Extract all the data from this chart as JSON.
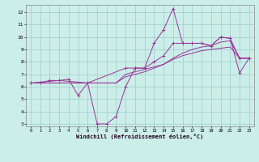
{
  "xlabel": "Windchill (Refroidissement éolien,°C)",
  "bg_color": "#cceee8",
  "line_color": "#993399",
  "grid_color": "#99cccc",
  "xlim": [
    -0.5,
    23.5
  ],
  "ylim": [
    2.8,
    12.6
  ],
  "yticks": [
    3,
    4,
    5,
    6,
    7,
    8,
    9,
    10,
    11,
    12
  ],
  "xticks": [
    0,
    1,
    2,
    3,
    4,
    5,
    6,
    7,
    8,
    9,
    10,
    11,
    12,
    13,
    14,
    15,
    16,
    17,
    18,
    19,
    20,
    21,
    22,
    23
  ],
  "line1_x": [
    0,
    1,
    2,
    3,
    4,
    5,
    6,
    7,
    8,
    9,
    10,
    11,
    12,
    13,
    14,
    15,
    16,
    17,
    18,
    19,
    20,
    21,
    22,
    23
  ],
  "line1_y": [
    6.3,
    6.3,
    6.5,
    6.5,
    6.6,
    5.3,
    6.3,
    3.0,
    3.0,
    3.6,
    6.0,
    7.5,
    7.5,
    9.5,
    10.6,
    12.3,
    9.5,
    9.5,
    9.5,
    9.3,
    10.0,
    9.9,
    7.1,
    8.3
  ],
  "line2_x": [
    0,
    1,
    2,
    3,
    4,
    5,
    6,
    7,
    8,
    9,
    10,
    11,
    12,
    13,
    14,
    15,
    16,
    17,
    18,
    19,
    20,
    21,
    22,
    23
  ],
  "line2_y": [
    6.3,
    6.3,
    6.3,
    6.3,
    6.3,
    6.3,
    6.3,
    6.3,
    6.3,
    6.3,
    7.0,
    7.2,
    7.4,
    7.6,
    7.8,
    8.2,
    8.5,
    8.7,
    8.9,
    9.0,
    9.1,
    9.2,
    8.3,
    8.3
  ],
  "line3_x": [
    0,
    1,
    2,
    3,
    4,
    5,
    6,
    7,
    8,
    9,
    10,
    11,
    12,
    13,
    14,
    15,
    16,
    17,
    18,
    19,
    20,
    21,
    22,
    23
  ],
  "line3_y": [
    6.3,
    6.3,
    6.3,
    6.3,
    6.3,
    6.3,
    6.3,
    6.3,
    6.3,
    6.3,
    6.8,
    7.0,
    7.2,
    7.5,
    7.8,
    8.3,
    8.7,
    9.0,
    9.2,
    9.3,
    9.6,
    9.7,
    8.3,
    8.3
  ],
  "line4_x": [
    0,
    3,
    6,
    10,
    11,
    12,
    13,
    14,
    15,
    16,
    17,
    18,
    19,
    20,
    21,
    22,
    23
  ],
  "line4_y": [
    6.3,
    6.5,
    6.3,
    7.5,
    7.5,
    7.5,
    8.0,
    8.5,
    9.5,
    9.5,
    9.5,
    9.5,
    9.3,
    10.0,
    9.9,
    8.3,
    8.3
  ]
}
